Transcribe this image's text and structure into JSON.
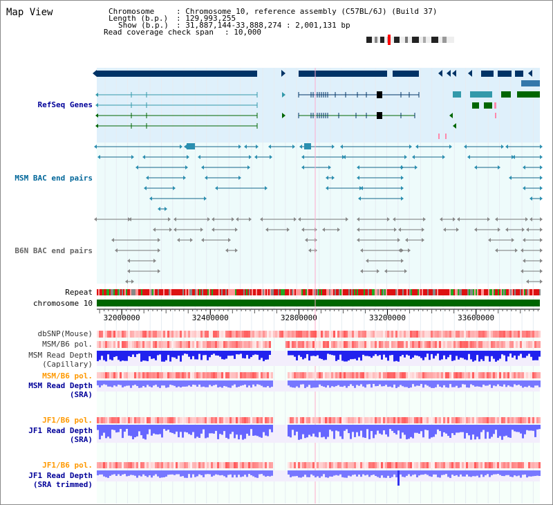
{
  "page": {
    "title": "Map View"
  },
  "info": {
    "chromosome_key": "Chromosome",
    "chromosome_value": ": Chromosome 10, reference assembly (C57BL/6J) (Build 37)",
    "length_key": "Length (b.p.)",
    "length_value": ": 129,993,255",
    "show_key": "Show (b.p.)",
    "show_value": ": 31,887,144-33,888,274 : 2,001,131 bp",
    "span_key": "Read coverage check span",
    "span_value": ": 10,000"
  },
  "tracks": {
    "refseq": "RefSeq Genes",
    "msm_bac": "MSM BAC end pairs",
    "b6n_bac": "B6N BAC end pairs",
    "repeat": "Repeat",
    "chromosome": "chromosome 10",
    "dbsnp": "dbSNP(Mouse)",
    "msm_pol1": "MSM/B6 pol.",
    "msm_depth_cap": "MSM Read Depth\n(Capillary)",
    "msm_pol2": "MSM/B6 pol.",
    "msm_depth_sra": "MSM Read Depth\n(SRA)",
    "jf1_pol1": "JF1/B6 pol.",
    "jf1_depth_sra": "JF1 Read Depth\n(SRA)",
    "jf1_pol2": "JF1/B6 pol.",
    "jf1_depth_trim": "JF1 Read Depth\n(SRA trimmed)"
  },
  "axis": {
    "ticks": [
      "32000000",
      "32400000",
      "32800000",
      "33200000",
      "33600000"
    ],
    "tick_values": [
      32000000,
      32400000,
      32800000,
      33200000,
      33600000
    ],
    "start": 31887144,
    "end": 33888274
  },
  "colors": {
    "refseq_bg": "#dff0fb",
    "bac_bg": "#eefbfb",
    "gene_dark": "#003366",
    "gene_teal": "#3399aa",
    "gene_green": "#006600",
    "msm_label": "#006699",
    "b6n_label": "#666666",
    "sra_label": "#000099",
    "pol_label": "#ff9900",
    "chrom_green": "#006600",
    "depth_blue": "#2222ee",
    "depth_light": "#7777ff"
  }
}
